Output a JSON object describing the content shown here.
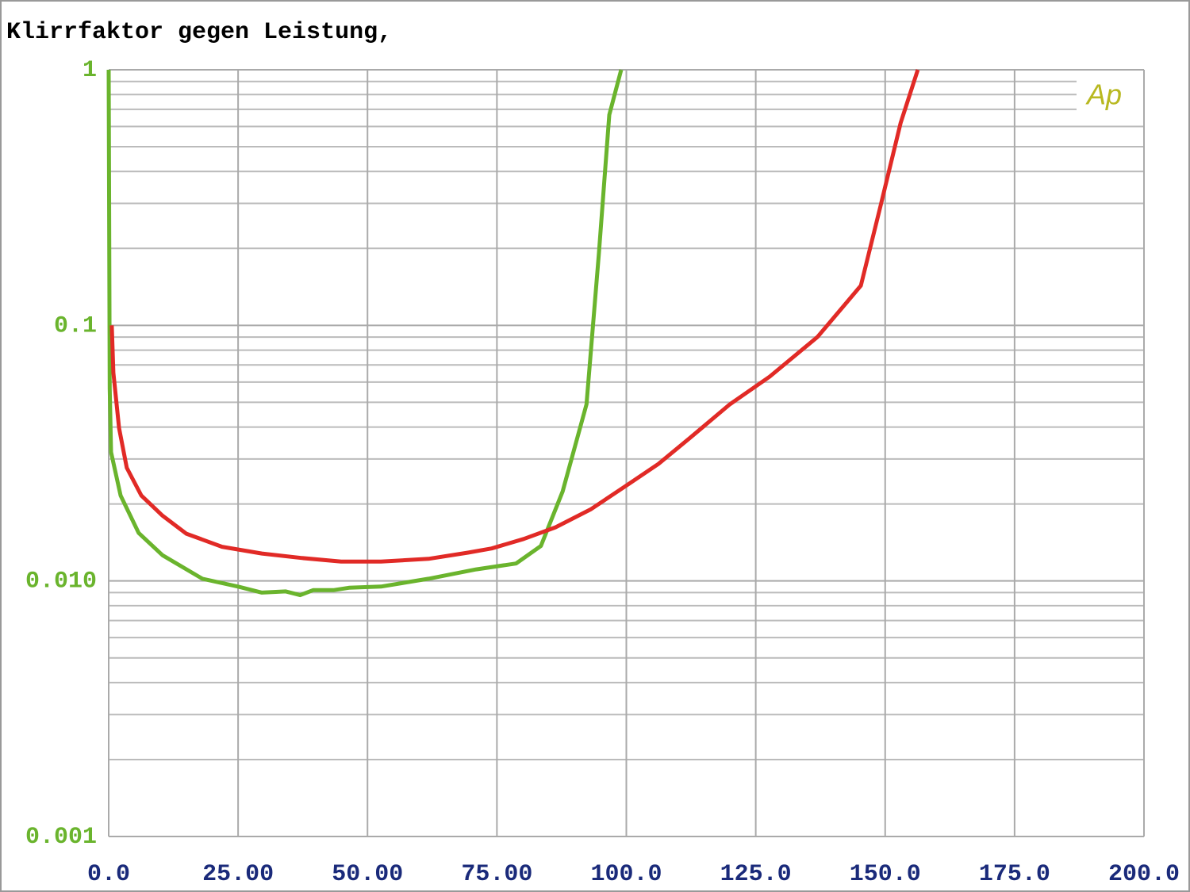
{
  "chart_data": {
    "type": "line",
    "title": "Klirrfaktor gegen Leistung,",
    "watermark": "Ap",
    "log_y": true,
    "grid": true,
    "minor_grid": true,
    "xlim": [
      0,
      200
    ],
    "xticks": [
      {
        "value": 0,
        "label": "0.0"
      },
      {
        "value": 25,
        "label": "25.00"
      },
      {
        "value": 50,
        "label": "50.00"
      },
      {
        "value": 75,
        "label": "75.00"
      },
      {
        "value": 100,
        "label": "100.0"
      },
      {
        "value": 125,
        "label": "125.0"
      },
      {
        "value": 150,
        "label": "150.0"
      },
      {
        "value": 175,
        "label": "175.0"
      },
      {
        "value": 200,
        "label": "200.0"
      }
    ],
    "ylim": [
      0.001,
      1
    ],
    "yticks": [
      0.001,
      {
        "value": 0.01,
        "label": "0.010"
      },
      0.1,
      1
    ],
    "series": [
      {
        "color": "#6ab42d",
        "x": [
          0,
          0.2,
          0.46,
          2.3,
          5.8,
          10.4,
          18.1,
          25,
          29.6,
          34.2,
          37.0,
          39.5,
          43.4,
          46.4,
          52.6,
          61.8,
          71,
          78.7,
          83.5,
          87.7,
          92.3,
          94.7,
          96.7,
          99.0
        ],
        "values": [
          1,
          0.0566,
          0.0319,
          0.0216,
          0.0154,
          0.0126,
          0.0102,
          0.0095,
          0.009,
          0.0091,
          0.0088,
          0.0092,
          0.0092,
          0.0094,
          0.0095,
          0.0102,
          0.0111,
          0.0117,
          0.0137,
          0.0224,
          0.0491,
          0.191,
          0.666,
          1
        ]
      },
      {
        "color": "#e12a26",
        "x": [
          0.6,
          0.9,
          2.0,
          3.5,
          6.3,
          10.4,
          15.0,
          21.9,
          29.6,
          37.2,
          44.9,
          52.6,
          61.8,
          69.4,
          74.0,
          80.2,
          86.3,
          93.2,
          100.1,
          106.2,
          112.3,
          120.0,
          127.7,
          136.9,
          145.3,
          149.1,
          153.0,
          156.3
        ],
        "values": [
          0.1,
          0.0653,
          0.0396,
          0.0277,
          0.0216,
          0.018,
          0.0153,
          0.0136,
          0.0128,
          0.0123,
          0.0119,
          0.0119,
          0.0122,
          0.0129,
          0.0134,
          0.0146,
          0.0162,
          0.0191,
          0.0237,
          0.0287,
          0.0363,
          0.0491,
          0.063,
          0.09,
          0.143,
          0.293,
          0.62,
          1
        ]
      }
    ]
  }
}
